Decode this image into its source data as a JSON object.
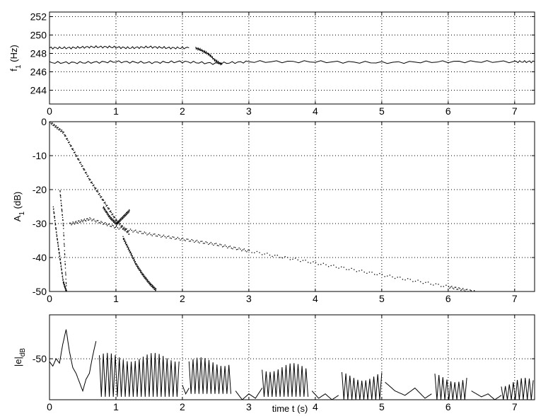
{
  "chart_data": [
    {
      "type": "line",
      "ylabel_main": "f",
      "ylabel_sub": "1",
      "ylabel_unit": " (Hz)",
      "xlim": [
        0,
        7.3
      ],
      "ylim": [
        242.5,
        252.5
      ],
      "xticks": [
        0,
        1,
        2,
        3,
        4,
        5,
        6,
        7
      ],
      "xtick_labels": [
        "0",
        "1",
        "2",
        "3",
        "4",
        "5",
        "6",
        "7"
      ],
      "yticks": [
        244,
        246,
        248,
        250,
        252
      ],
      "ytick_labels": [
        "244",
        "246",
        "248",
        "250",
        "252"
      ],
      "grid": true,
      "series": [
        {
          "x": [
            0.0,
            0.3,
            0.6,
            0.9,
            1.2,
            1.5,
            1.8,
            2.1
          ],
          "y": [
            248.6,
            248.6,
            248.7,
            248.7,
            248.6,
            248.7,
            248.6,
            248.6
          ]
        },
        {
          "x": [
            0.0,
            0.5,
            1.0,
            1.5,
            2.0,
            2.5,
            3.0,
            4.0,
            5.0,
            6.0,
            7.0,
            7.3
          ],
          "y": [
            247.0,
            247.0,
            247.1,
            247.0,
            247.1,
            246.9,
            247.1,
            247.1,
            247.0,
            247.1,
            247.1,
            247.1
          ]
        },
        {
          "x": [
            2.2,
            2.3,
            2.4,
            2.5,
            2.6
          ],
          "y": [
            248.6,
            248.3,
            247.9,
            247.2,
            246.8
          ]
        }
      ]
    },
    {
      "type": "scatter",
      "ylabel_main": "A",
      "ylabel_sub": "1",
      "ylabel_unit": " (dB)",
      "xlim": [
        0,
        7.3
      ],
      "ylim": [
        -50,
        0
      ],
      "xticks": [
        0,
        1,
        2,
        3,
        4,
        5,
        6,
        7
      ],
      "xtick_labels": [
        "0",
        "1",
        "2",
        "3",
        "4",
        "5",
        "6",
        "7"
      ],
      "yticks": [
        -50,
        -40,
        -30,
        -20,
        -10,
        0
      ],
      "ytick_labels": [
        "-50",
        "-40",
        "-30",
        "-20",
        "-10",
        "0"
      ],
      "grid": true,
      "series": [
        {
          "x": [
            0.0,
            0.2,
            0.4,
            0.6,
            0.8,
            1.0,
            1.2
          ],
          "y": [
            0,
            -3,
            -10,
            -17,
            -23,
            -29,
            -33
          ]
        },
        {
          "x": [
            0.3,
            0.6,
            1.0,
            1.5,
            2.0,
            2.5,
            3.0,
            4.0,
            5.0,
            6.0,
            6.4
          ],
          "y": [
            -30,
            -28.5,
            -31,
            -33,
            -34.5,
            -36,
            -38,
            -41.5,
            -45,
            -48.5,
            -50
          ]
        },
        {
          "x": [
            1.1,
            1.2,
            1.3,
            1.4,
            1.5,
            1.6
          ],
          "y": [
            -34,
            -38,
            -42,
            -45,
            -47.5,
            -49.5
          ]
        },
        {
          "x": [
            0.05,
            0.1,
            0.15,
            0.2,
            0.25,
            0.2,
            0.15
          ],
          "y": [
            -25,
            -33,
            -40,
            -47,
            -50,
            -30,
            -20
          ]
        },
        {
          "x": [
            0.8,
            0.9,
            1.0,
            1.1,
            1.2
          ],
          "y": [
            -25,
            -28,
            -30,
            -28,
            -26
          ]
        }
      ]
    },
    {
      "type": "line",
      "ylabel_main": "|e|",
      "ylabel_sub": "dB",
      "xlabel": "time t (s)",
      "xlim": [
        0,
        7.3
      ],
      "ylim": [
        -78,
        -20
      ],
      "xticks": [
        0,
        1,
        2,
        3,
        4,
        5,
        6,
        7
      ],
      "xtick_labels": [
        "0",
        "1",
        "2",
        "3",
        "4",
        "5",
        "6",
        "7"
      ],
      "yticks": [
        -50
      ],
      "ytick_labels": [
        "-50"
      ],
      "grid": true,
      "bursts": [
        {
          "x0": 0.75,
          "x1": 1.95,
          "top": -49,
          "bottom": -76
        },
        {
          "x0": 2.1,
          "x1": 2.75,
          "top": -52,
          "bottom": -74
        },
        {
          "x0": 3.2,
          "x1": 3.9,
          "top": -56,
          "bottom": -76
        },
        {
          "x0": 4.4,
          "x1": 5.0,
          "top": -62,
          "bottom": -78
        },
        {
          "x0": 5.8,
          "x1": 6.3,
          "top": -63,
          "bottom": -78
        },
        {
          "x0": 6.8,
          "x1": 7.3,
          "top": -66,
          "bottom": -78
        }
      ],
      "series": [
        {
          "x": [
            0.0,
            0.05,
            0.1,
            0.15,
            0.2,
            0.25,
            0.3,
            0.35,
            0.4,
            0.45,
            0.5,
            0.55,
            0.6,
            0.65,
            0.7
          ],
          "y": [
            -52,
            -55,
            -50,
            -53,
            -40,
            -30,
            -45,
            -56,
            -60,
            -66,
            -72,
            -64,
            -60,
            -48,
            -38
          ]
        },
        {
          "x": [
            2.0,
            2.05,
            2.1
          ],
          "y": [
            -68,
            -74,
            -70
          ]
        },
        {
          "x": [
            2.8,
            2.9,
            3.0,
            3.1,
            3.2
          ],
          "y": [
            -72,
            -78,
            -74,
            -77,
            -70
          ]
        },
        {
          "x": [
            3.95,
            4.05,
            4.15,
            4.25,
            4.35
          ],
          "y": [
            -72,
            -77,
            -74,
            -78,
            -75
          ]
        },
        {
          "x": [
            5.05,
            5.2,
            5.35,
            5.5,
            5.65,
            5.75
          ],
          "y": [
            -66,
            -72,
            -75,
            -70,
            -77,
            -74
          ]
        },
        {
          "x": [
            6.35,
            6.5,
            6.6,
            6.7,
            6.8
          ],
          "y": [
            -72,
            -76,
            -74,
            -78,
            -75
          ]
        }
      ]
    }
  ]
}
